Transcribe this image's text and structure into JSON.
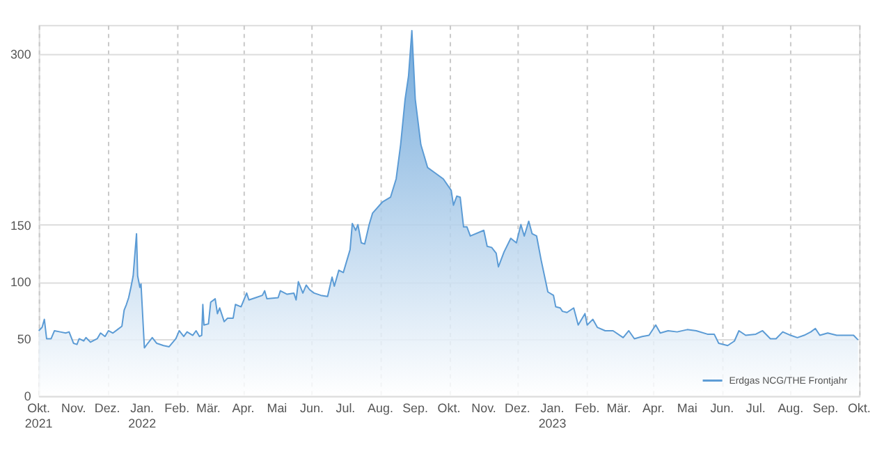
{
  "chart_data": {
    "type": "area",
    "grid": true,
    "legend": "bottom right",
    "xlim": [
      "2021-10-01",
      "2023-10-01"
    ],
    "ylim": [
      0,
      325
    ],
    "yticks": [
      0,
      50,
      100,
      150,
      300
    ],
    "xticks": [
      {
        "value": "2021-10-01",
        "label": "Okt.\n2021"
      },
      {
        "value": "2021-11-01",
        "label": "Nov."
      },
      {
        "value": "2021-12-01",
        "label": "Dez."
      },
      {
        "value": "2022-01-01",
        "label": "Jan.\n2022"
      },
      {
        "value": "2022-02-01",
        "label": "Feb."
      },
      {
        "value": "2022-03-01",
        "label": "Mär."
      },
      {
        "value": "2022-04-01",
        "label": "Apr."
      },
      {
        "value": "2022-05-01",
        "label": "Mai"
      },
      {
        "value": "2022-06-01",
        "label": "Jun."
      },
      {
        "value": "2022-07-01",
        "label": "Jul."
      },
      {
        "value": "2022-08-01",
        "label": "Aug."
      },
      {
        "value": "2022-09-01",
        "label": "Sep."
      },
      {
        "value": "2022-10-01",
        "label": "Okt."
      },
      {
        "value": "2022-11-01",
        "label": "Nov."
      },
      {
        "value": "2022-12-01",
        "label": "Dez."
      },
      {
        "value": "2023-01-01",
        "label": "Jan.\n2023"
      },
      {
        "value": "2023-02-01",
        "label": "Feb."
      },
      {
        "value": "2023-03-01",
        "label": "Mär."
      },
      {
        "value": "2023-04-01",
        "label": "Apr."
      },
      {
        "value": "2023-05-01",
        "label": "Mai"
      },
      {
        "value": "2023-06-01",
        "label": "Jun."
      },
      {
        "value": "2023-07-01",
        "label": "Jul."
      },
      {
        "value": "2023-08-01",
        "label": "Aug."
      },
      {
        "value": "2023-09-01",
        "label": "Sep."
      },
      {
        "value": "2023-10-01",
        "label": "Okt."
      }
    ],
    "x": [
      "2021-10-01",
      "2021-10-04",
      "2021-10-06",
      "2021-10-08",
      "2021-10-12",
      "2021-10-15",
      "2021-10-20",
      "2021-10-25",
      "2021-10-28",
      "2021-11-01",
      "2021-11-04",
      "2021-11-06",
      "2021-11-10",
      "2021-11-12",
      "2021-11-16",
      "2021-11-22",
      "2021-11-25",
      "2021-11-29",
      "2021-12-02",
      "2021-12-06",
      "2021-12-10",
      "2021-12-14",
      "2021-12-16",
      "2021-12-18",
      "2021-12-20",
      "2021-12-22",
      "2021-12-24",
      "2021-12-27",
      "2021-12-28",
      "2021-12-30",
      "2021-12-31",
      "2022-01-03",
      "2022-01-06",
      "2022-01-10",
      "2022-01-14",
      "2022-01-20",
      "2022-01-25",
      "2022-01-31",
      "2022-02-03",
      "2022-02-07",
      "2022-02-10",
      "2022-02-15",
      "2022-02-18",
      "2022-02-21",
      "2022-02-23",
      "2022-02-24",
      "2022-02-25",
      "2022-03-01",
      "2022-03-03",
      "2022-03-07",
      "2022-03-09",
      "2022-03-11",
      "2022-03-15",
      "2022-03-18",
      "2022-03-23",
      "2022-03-25",
      "2022-03-30",
      "2022-04-04",
      "2022-04-06",
      "2022-04-12",
      "2022-04-18",
      "2022-04-20",
      "2022-04-22",
      "2022-05-02",
      "2022-05-04",
      "2022-05-10",
      "2022-05-16",
      "2022-05-18",
      "2022-05-20",
      "2022-05-24",
      "2022-05-27",
      "2022-05-30",
      "2022-06-03",
      "2022-06-09",
      "2022-06-15",
      "2022-06-19",
      "2022-06-21",
      "2022-06-25",
      "2022-06-29",
      "2022-07-05",
      "2022-07-07",
      "2022-07-10",
      "2022-07-12",
      "2022-07-15",
      "2022-07-18",
      "2022-07-22",
      "2022-07-25",
      "2022-08-03",
      "2022-08-10",
      "2022-08-15",
      "2022-08-19",
      "2022-08-23",
      "2022-08-26",
      "2022-08-29",
      "2022-09-01",
      "2022-09-06",
      "2022-09-12",
      "2022-09-19",
      "2022-09-26",
      "2022-10-03",
      "2022-10-05",
      "2022-10-08",
      "2022-10-11",
      "2022-10-14",
      "2022-10-17",
      "2022-10-20",
      "2022-11-01",
      "2022-11-04",
      "2022-11-08",
      "2022-11-12",
      "2022-11-14",
      "2022-11-19",
      "2022-11-25",
      "2022-11-30",
      "2022-12-04",
      "2022-12-07",
      "2022-12-11",
      "2022-12-14",
      "2022-12-18",
      "2022-12-22",
      "2022-12-25",
      "2022-12-28",
      "2023-01-02",
      "2023-01-04",
      "2023-01-08",
      "2023-01-10",
      "2023-01-14",
      "2023-01-20",
      "2023-01-24",
      "2023-01-30",
      "2023-02-01",
      "2023-02-06",
      "2023-02-10",
      "2023-02-17",
      "2023-02-24",
      "2023-03-05",
      "2023-03-10",
      "2023-03-15",
      "2023-03-22",
      "2023-03-28",
      "2023-04-03",
      "2023-04-07",
      "2023-04-14",
      "2023-04-22",
      "2023-05-01",
      "2023-05-09",
      "2023-05-19",
      "2023-05-25",
      "2023-05-29",
      "2023-06-06",
      "2023-06-12",
      "2023-06-16",
      "2023-06-22",
      "2023-07-01",
      "2023-07-07",
      "2023-07-14",
      "2023-07-19",
      "2023-07-25",
      "2023-08-01",
      "2023-08-07",
      "2023-08-13",
      "2023-08-19",
      "2023-08-23",
      "2023-08-27",
      "2023-09-03",
      "2023-09-11",
      "2023-09-19",
      "2023-09-26",
      "2023-09-30"
    ],
    "series": [
      {
        "name": "Erdgas NCG/THE Frontjahr",
        "color": "#5b9bd5",
        "values": [
          57,
          60,
          67,
          50,
          50,
          57,
          56,
          55,
          56,
          46,
          45,
          50,
          48,
          51,
          47,
          50,
          55,
          52,
          57,
          55,
          58,
          61,
          75,
          80,
          86,
          95,
          105,
          142,
          105,
          95,
          98,
          42,
          46,
          51,
          46,
          44,
          43,
          50,
          57,
          52,
          56,
          53,
          57,
          52,
          53,
          80,
          62,
          63,
          82,
          85,
          72,
          77,
          65,
          68,
          68,
          80,
          78,
          90,
          84,
          86,
          88,
          92,
          85,
          86,
          92,
          89,
          90,
          84,
          100,
          90,
          97,
          93,
          90,
          88,
          87,
          104,
          96,
          110,
          108,
          128,
          151,
          145,
          150,
          134,
          133,
          150,
          160,
          170,
          174,
          190,
          220,
          260,
          280,
          320,
          260,
          220,
          200,
          195,
          190,
          180,
          167,
          175,
          174,
          148,
          148,
          140,
          145,
          131,
          130,
          125,
          113,
          126,
          138,
          134,
          150,
          140,
          153,
          142,
          140,
          119,
          105,
          91,
          88,
          78,
          77,
          74,
          73,
          77,
          62,
          72,
          62,
          67,
          60,
          57,
          57,
          51,
          57,
          50,
          52,
          53,
          62,
          55,
          57,
          56,
          58,
          57,
          54,
          54,
          46,
          44,
          48,
          57,
          53,
          54,
          57,
          50,
          50,
          56,
          53,
          51,
          53,
          56,
          59,
          53,
          55,
          53,
          53,
          53,
          49
        ]
      }
    ]
  }
}
